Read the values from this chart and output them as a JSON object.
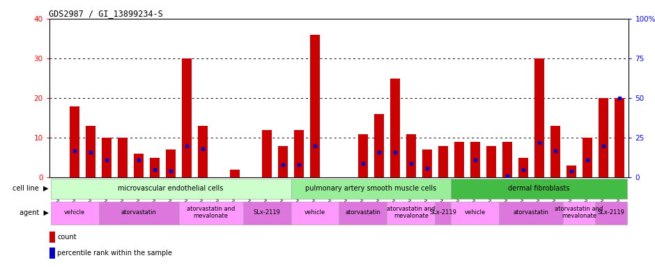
{
  "title": "GDS2987 / GI_13899234-S",
  "samples": [
    "GSM214810",
    "GSM215244",
    "GSM215253",
    "GSM215254",
    "GSM215282",
    "GSM215344",
    "GSM215263",
    "GSM215284",
    "GSM215293",
    "GSM215294",
    "GSM215295",
    "GSM215296",
    "GSM215297",
    "GSM215298",
    "GSM215310",
    "GSM215311",
    "GSM215312",
    "GSM215313",
    "GSM215324",
    "GSM215325",
    "GSM215326",
    "GSM215327",
    "GSM215328",
    "GSM215329",
    "GSM215330",
    "GSM215331",
    "GSM215332",
    "GSM215333",
    "GSM215334",
    "GSM215335",
    "GSM215336",
    "GSM215337",
    "GSM215338",
    "GSM215339",
    "GSM215340",
    "GSM215341"
  ],
  "red_values": [
    0,
    18,
    13,
    10,
    10,
    6,
    5,
    7,
    30,
    13,
    0,
    2,
    0,
    12,
    8,
    12,
    36,
    0,
    0,
    11,
    16,
    25,
    11,
    7,
    8,
    9,
    9,
    8,
    9,
    5,
    30,
    13,
    3,
    10,
    20,
    20
  ],
  "blue_values": [
    0,
    17,
    16,
    11,
    0,
    11,
    5,
    4,
    20,
    18,
    0,
    0,
    0,
    0,
    8,
    8,
    20,
    0,
    0,
    9,
    16,
    16,
    9,
    6,
    0,
    0,
    11,
    0,
    1,
    5,
    22,
    17,
    4,
    11,
    20,
    50
  ],
  "cell_line_groups": [
    {
      "label": "microvascular endothelial cells",
      "start": 0,
      "end": 15,
      "color": "#ccffcc"
    },
    {
      "label": "pulmonary artery smooth muscle cells",
      "start": 15,
      "end": 25,
      "color": "#99ee99"
    },
    {
      "label": "dermal fibroblasts",
      "start": 25,
      "end": 36,
      "color": "#44bb44"
    }
  ],
  "agent_groups": [
    {
      "label": "vehicle",
      "start": 0,
      "end": 3,
      "color": "#ff99ff"
    },
    {
      "label": "atorvastatin",
      "start": 3,
      "end": 8,
      "color": "#dd77dd"
    },
    {
      "label": "atorvastatin and\nmevalonate",
      "start": 8,
      "end": 12,
      "color": "#ff99ff"
    },
    {
      "label": "SLx-2119",
      "start": 12,
      "end": 15,
      "color": "#dd77dd"
    },
    {
      "label": "vehicle",
      "start": 15,
      "end": 18,
      "color": "#ff99ff"
    },
    {
      "label": "atorvastatin",
      "start": 18,
      "end": 21,
      "color": "#dd77dd"
    },
    {
      "label": "atorvastatin and\nmevalonate",
      "start": 21,
      "end": 24,
      "color": "#ff99ff"
    },
    {
      "label": "SLx-2119",
      "start": 24,
      "end": 25,
      "color": "#dd77dd"
    },
    {
      "label": "vehicle",
      "start": 25,
      "end": 28,
      "color": "#ff99ff"
    },
    {
      "label": "atorvastatin",
      "start": 28,
      "end": 32,
      "color": "#dd77dd"
    },
    {
      "label": "atorvastatin and\nmevalonate",
      "start": 32,
      "end": 34,
      "color": "#ff99ff"
    },
    {
      "label": "SLx-2119",
      "start": 34,
      "end": 36,
      "color": "#dd77dd"
    }
  ],
  "ylim_left": [
    0,
    40
  ],
  "ylim_right": [
    0,
    100
  ],
  "yticks_left": [
    0,
    10,
    20,
    30,
    40
  ],
  "yticks_right": [
    0,
    25,
    50,
    75,
    100
  ],
  "red_color": "#cc0000",
  "blue_color": "#0000cc",
  "bar_width": 0.6,
  "bg_color": "#ffffff"
}
